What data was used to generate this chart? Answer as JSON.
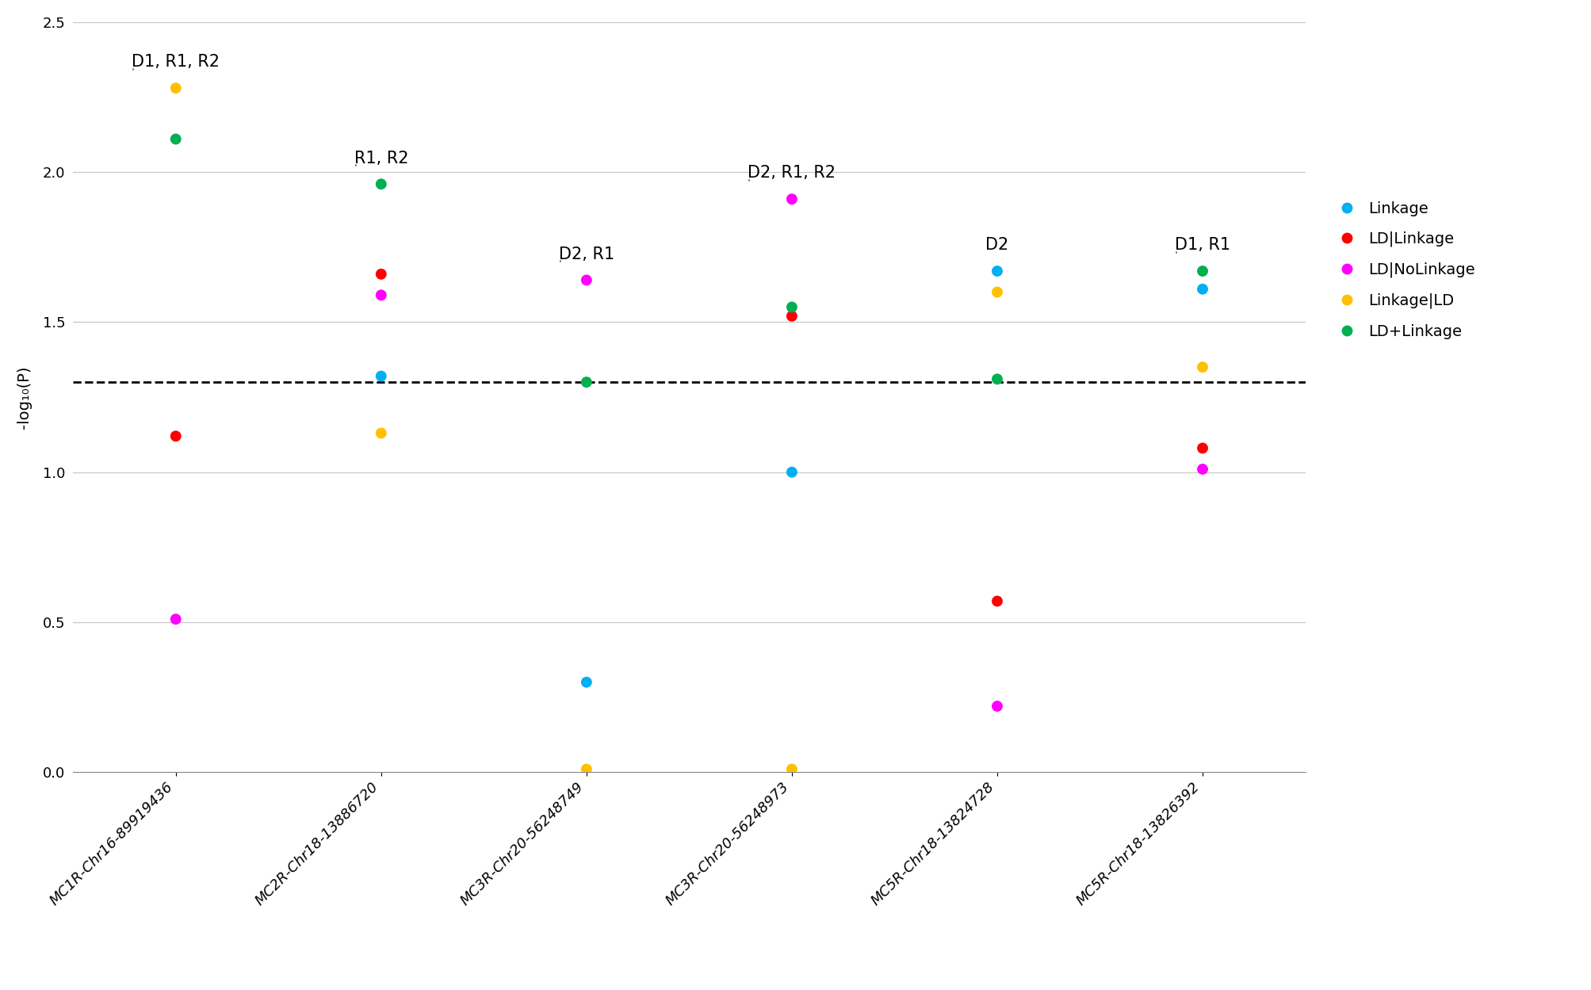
{
  "categories": [
    "MC1R-Chr16-89919436",
    "MC2R-Chr18-13886720",
    "MC3R-Chr20-56248749",
    "MC3R-Chr20-56248973",
    "MC5R-Chr18-13824728",
    "MC5R-Chr18-13826392"
  ],
  "series": {
    "Linkage": {
      "color": "#00B0F0",
      "values": [
        null,
        1.32,
        0.3,
        1.0,
        1.67,
        1.61
      ]
    },
    "LD|Linkage": {
      "color": "#FF0000",
      "values": [
        1.12,
        1.66,
        null,
        1.52,
        0.57,
        1.08
      ]
    },
    "LD|NoLinkage": {
      "color": "#FF00FF",
      "values": [
        0.51,
        1.59,
        1.64,
        1.91,
        0.22,
        1.01
      ]
    },
    "Linkage|LD": {
      "color": "#FFC000",
      "values": [
        2.28,
        1.13,
        0.01,
        0.01,
        1.6,
        1.35
      ]
    },
    "LD+Linkage": {
      "color": "#00B050",
      "values": [
        2.11,
        1.96,
        1.3,
        1.55,
        1.31,
        1.67
      ]
    }
  },
  "annotations": [
    {
      "x": 0,
      "parts": [
        [
          "D1, ",
          false
        ],
        [
          "R1",
          true
        ],
        [
          ", R2",
          false
        ]
      ]
    },
    {
      "x": 1,
      "parts": [
        [
          "R1",
          true
        ],
        [
          ", R2",
          false
        ]
      ]
    },
    {
      "x": 2,
      "parts": [
        [
          "D2, ",
          false
        ],
        [
          "R1",
          true
        ]
      ]
    },
    {
      "x": 3,
      "parts": [
        [
          "D2, ",
          false
        ],
        [
          "R1",
          true
        ],
        [
          ", R2",
          false
        ]
      ]
    },
    {
      "x": 4,
      "parts": [
        [
          "D2",
          false
        ]
      ]
    },
    {
      "x": 5,
      "parts": [
        [
          "D1, ",
          false
        ],
        [
          "R1",
          true
        ]
      ]
    }
  ],
  "threshold": 1.301,
  "ylim": [
    0.0,
    2.5
  ],
  "yticks": [
    0.0,
    0.5,
    1.0,
    1.5,
    2.0,
    2.5
  ],
  "ylabel": "-log₁₀(P)",
  "background_color": "#FFFFFF",
  "grid_color": "#C8C8C8",
  "marker_size": 100,
  "annotation_fontsize": 15,
  "legend_fontsize": 14,
  "tick_fontsize": 13,
  "ylabel_fontsize": 14
}
